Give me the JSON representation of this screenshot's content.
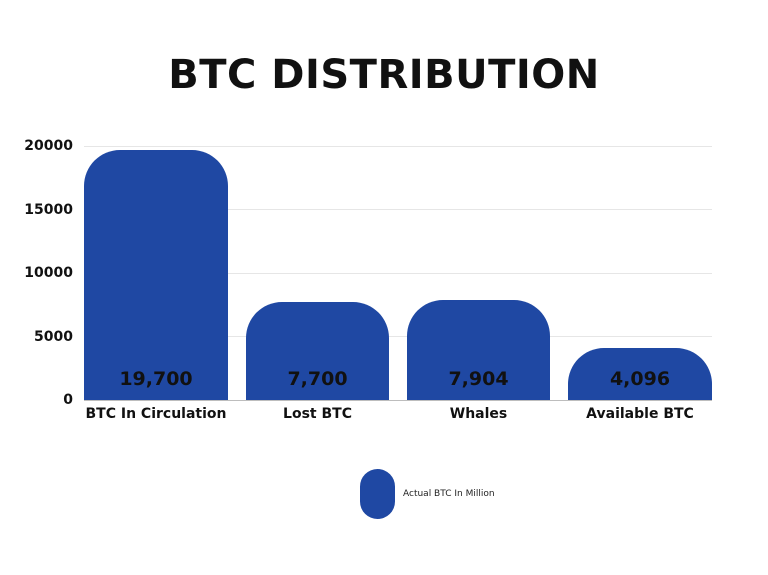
{
  "chart_data": {
    "type": "bar",
    "title": "BTC DISTRIBUTION",
    "categories": [
      "BTC In Circulation",
      "Lost BTC",
      "Whales",
      "Available BTC"
    ],
    "series": [
      {
        "name": "Actual BTC In Million",
        "values": [
          19700,
          7700,
          7904,
          4096
        ],
        "color": "#1f48a3"
      }
    ],
    "data_labels": [
      "19,700",
      "7,700",
      "7,904",
      "4,096"
    ],
    "xlabel": "",
    "ylabel": "",
    "ylim": [
      0,
      20000
    ],
    "yticks": [
      "0",
      "5000",
      "10000",
      "15000",
      "20000"
    ],
    "grid": true,
    "legend_position": "bottom"
  },
  "header": {
    "title": "BTC DISTRIBUTION"
  },
  "yaxis": {
    "ticks": [
      "20000",
      "15000",
      "10000",
      "5000",
      "0"
    ]
  },
  "bars": [
    {
      "category": "BTC In Circulation",
      "label": "19,700"
    },
    {
      "category": "Lost BTC",
      "label": "7,700"
    },
    {
      "category": "Whales",
      "label": "7,904"
    },
    {
      "category": "Available BTC",
      "label": "4,096"
    }
  ],
  "legend": {
    "label": "Actual BTC In Million"
  },
  "colors": {
    "bar": "#1f48a3",
    "grid": "#e6e6e6",
    "text": "#111111"
  }
}
